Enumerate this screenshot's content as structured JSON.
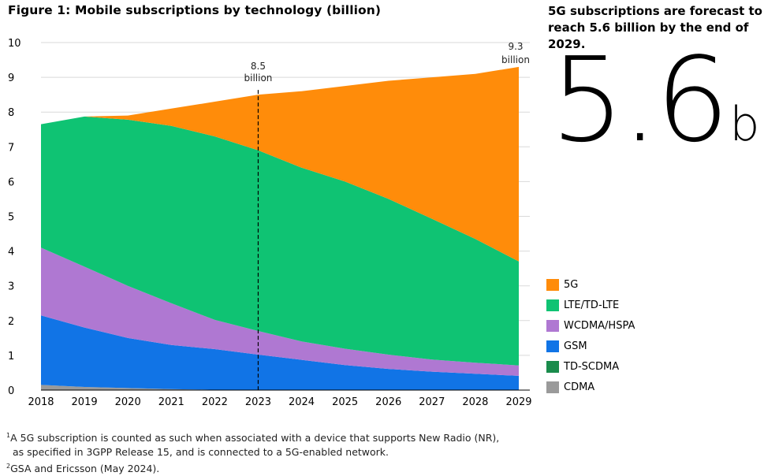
{
  "title": "Figure 1: Mobile subscriptions by technology (billion)",
  "headline": "5G subscriptions are forecast to reach 5.6 billion by the end of 2029.",
  "big_number": "5.6",
  "big_number_unit": "bn",
  "footnotes": [
    {
      "mark": "1",
      "text": "A 5G subscription is counted as such when associated with a device that supports New Radio (NR),"
    },
    {
      "mark": "",
      "text": "as specified in 3GPP Release 15, and is connected to a 5G-enabled network."
    },
    {
      "mark": "2",
      "text": "GSA and Ericsson (May 2024)."
    }
  ],
  "chart_data": {
    "type": "area",
    "stacked": true,
    "title": "Figure 1: Mobile subscriptions by technology (billion)",
    "xlabel": "",
    "ylabel": "",
    "x": [
      2018,
      2019,
      2020,
      2021,
      2022,
      2023,
      2024,
      2025,
      2026,
      2027,
      2028,
      2029
    ],
    "ylim": [
      0,
      10
    ],
    "yticks": [
      "0",
      "1",
      "2",
      "3",
      "4",
      "5",
      "6",
      "7",
      "8",
      "9",
      "10"
    ],
    "grid": true,
    "series": [
      {
        "name": "CDMA",
        "color": "#9a9a9a",
        "values": [
          0.15,
          0.09,
          0.06,
          0.03,
          0.01,
          0.0,
          0.0,
          0.0,
          0.0,
          0.0,
          0.0,
          0.0
        ]
      },
      {
        "name": "TD-SCDMA",
        "color": "#1a8c4c",
        "values": [
          0.0,
          0.0,
          0.0,
          0.0,
          0.0,
          0.0,
          0.0,
          0.0,
          0.0,
          0.0,
          0.0,
          0.0
        ]
      },
      {
        "name": "GSM",
        "color": "#1174e6",
        "values": [
          2.0,
          1.71,
          1.44,
          1.27,
          1.17,
          1.02,
          0.87,
          0.72,
          0.61,
          0.53,
          0.47,
          0.41
        ]
      },
      {
        "name": "WCDMA/HSPA",
        "color": "#af78d2",
        "values": [
          1.95,
          1.75,
          1.5,
          1.2,
          0.84,
          0.68,
          0.53,
          0.47,
          0.41,
          0.35,
          0.32,
          0.3
        ]
      },
      {
        "name": "LTE/TD-LTE",
        "color": "#0fc373",
        "values": [
          3.55,
          4.32,
          4.78,
          5.1,
          5.28,
          5.2,
          5.0,
          4.81,
          4.48,
          4.05,
          3.56,
          2.99
        ]
      },
      {
        "name": "5G",
        "color": "#ff8c0a",
        "values": [
          0.0,
          0.0,
          0.12,
          0.5,
          1.0,
          1.6,
          2.2,
          2.75,
          3.4,
          4.07,
          4.75,
          5.6
        ]
      }
    ],
    "annotations": [
      {
        "x": 2023,
        "total": 8.5,
        "lines": [
          "8.5",
          "billion"
        ]
      },
      {
        "x": 2029,
        "total": 9.3,
        "lines": [
          "9.3",
          "billion"
        ]
      }
    ],
    "legend": [
      "5G",
      "LTE/TD-LTE",
      "WCDMA/HSPA",
      "GSM",
      "TD-SCDMA",
      "CDMA"
    ],
    "legend_position": "right"
  }
}
